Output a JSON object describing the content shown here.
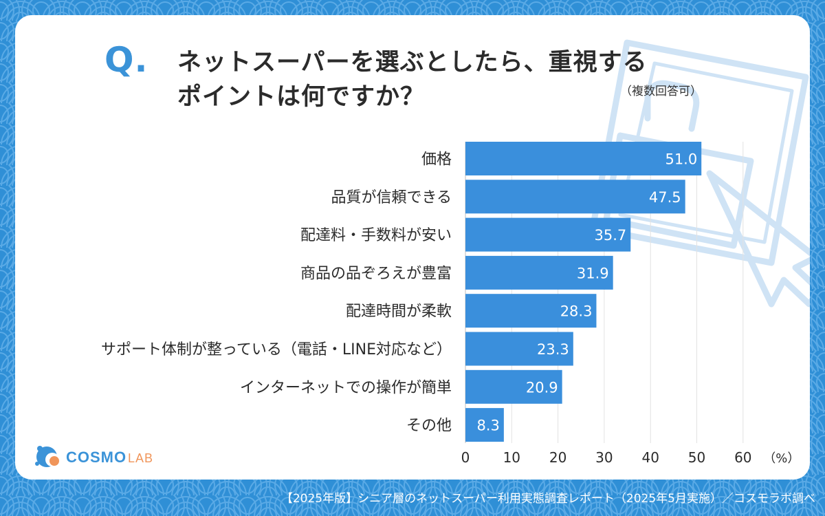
{
  "question": {
    "mark": "Q.",
    "line1": "ネットスーパーを選ぶとしたら、重視する",
    "line2": "ポイントは何ですか？",
    "note": "（複数回答可）"
  },
  "chart_data": {
    "type": "bar",
    "orientation": "horizontal",
    "categories": [
      "価格",
      "品質が信頼できる",
      "配達料・手数料が安い",
      "商品の品ぞろえが豊富",
      "配達時間が柔軟",
      "サポート体制が整っている（電話・LINE対応など）",
      "インターネットでの操作が簡単",
      "その他"
    ],
    "values": [
      51.0,
      47.5,
      35.7,
      31.9,
      28.3,
      23.3,
      20.9,
      8.3
    ],
    "value_labels": [
      "51.0",
      "47.5",
      "35.7",
      "31.9",
      "28.3",
      "23.3",
      "20.9",
      "8.3"
    ],
    "xlim": [
      0,
      60
    ],
    "xticks": [
      0,
      10,
      20,
      30,
      40,
      50,
      60
    ],
    "xunit": "（%）",
    "grid": true,
    "bar_color": "#3a8fdc",
    "label_color": "#ffffff"
  },
  "logo": {
    "text_main": "COSMO",
    "text_sub": "LAB",
    "main_color": "#3b93d8",
    "sub_color": "#f0955a"
  },
  "footer": "【2025年版】シニア層のネットスーパー利用実態調査レポート（2025年5月実施）／コスモラボ調べ",
  "colors": {
    "background": "#2f8fd6",
    "accent": "#3b93d8",
    "card": "#ffffff"
  }
}
